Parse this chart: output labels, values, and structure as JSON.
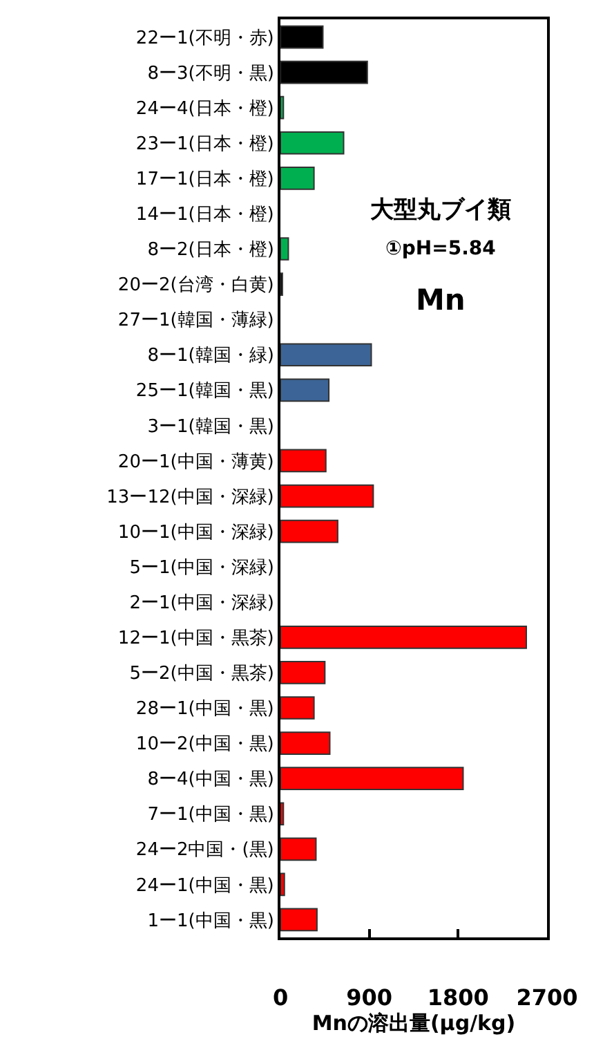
{
  "chart_data": {
    "type": "bar",
    "orientation": "horizontal",
    "xlabel": "Mnの溶出量(µg/kg)",
    "annotations": [
      "大型丸ブイ類",
      "①pH=5.84",
      "Mn"
    ],
    "categories": [
      "22ー1(不明・赤)",
      "8ー3(不明・黒)",
      "24ー4(日本・橙)",
      "23ー1(日本・橙)",
      "17ー1(日本・橙)",
      "14ー1(日本・橙)",
      "8ー2(日本・橙)",
      "20ー2(台湾・白黄)",
      "27ー1(韓国・薄緑)",
      "8ー1(韓国・緑)",
      "25ー1(韓国・黒)",
      "3ー1(韓国・黒)",
      "20ー1(中国・薄黄)",
      "13ー12(中国・深緑)",
      "10ー1(中国・深緑)",
      "5ー1(中国・深緑)",
      "2ー1(中国・深緑)",
      "12ー1(中国・黒茶)",
      "5ー2(中国・黒茶)",
      "28ー1(中国・黒)",
      "10ー2(中国・黒)",
      "8ー4(中国・黒)",
      "7ー1(中国・黒)",
      "24ー2中国・(黒)",
      "24ー1(中国・黒)",
      "1ー1(中国・黒)"
    ],
    "values": [
      430,
      880,
      30,
      640,
      340,
      0,
      80,
      20,
      0,
      920,
      490,
      0,
      460,
      940,
      580,
      0,
      0,
      2490,
      450,
      340,
      500,
      1850,
      30,
      360,
      40,
      370
    ],
    "colors": [
      "#000000",
      "#000000",
      "#00b050",
      "#00b050",
      "#00b050",
      "#00b050",
      "#00b050",
      "#000000",
      "#3c6496",
      "#3c6496",
      "#3c6496",
      "#3c6496",
      "#ff0000",
      "#ff0000",
      "#ff0000",
      "#ff0000",
      "#ff0000",
      "#ff0000",
      "#ff0000",
      "#ff0000",
      "#ff0000",
      "#ff0000",
      "#ff0000",
      "#ff0000",
      "#ff0000",
      "#ff0000"
    ],
    "xlim": [
      0,
      2700
    ],
    "xticks": [
      0,
      900,
      1800,
      2700
    ]
  }
}
